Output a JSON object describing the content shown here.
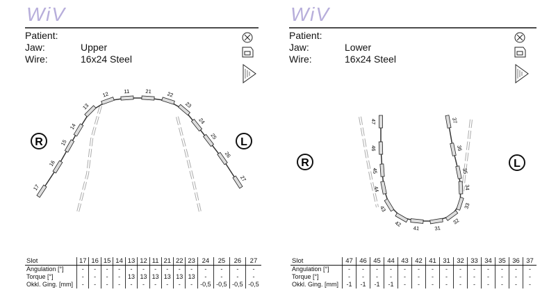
{
  "panels": [
    {
      "logo": "WiV",
      "patient": "Patient:",
      "jaw_label": "Jaw:",
      "jaw": "Upper",
      "wire_label": "Wire:",
      "wire": "16x24 Steel",
      "right_side": "R",
      "left_side": "L",
      "table": {
        "rows": [
          {
            "label": "Slot",
            "cells": [
              "17",
              "16",
              "15",
              "14",
              "13",
              "12",
              "11",
              "21",
              "22",
              "23",
              "24",
              "25",
              "26",
              "27"
            ]
          },
          {
            "label": "Angulation [°]",
            "cells": [
              "-",
              "-",
              "-",
              "-",
              "-",
              "-",
              "-",
              "-",
              "-",
              "-",
              "-",
              "-",
              "-",
              "-"
            ]
          },
          {
            "label": "Torque [°]",
            "cells": [
              "-",
              "-",
              "-",
              "-",
              "13",
              "13",
              "13",
              "13",
              "13",
              "13",
              "-",
              "-",
              "-",
              "-"
            ]
          },
          {
            "label": "Okkl. Ging. [mm]",
            "cells": [
              "-",
              "-",
              "-",
              "-",
              "-",
              "-",
              "-",
              "-",
              "-",
              "-",
              "-0,5",
              "-0,5",
              "-0,5",
              "-0,5"
            ]
          }
        ]
      }
    },
    {
      "logo": "WiV",
      "patient": "Patient:",
      "jaw_label": "Jaw:",
      "jaw": "Lower",
      "wire_label": "Wire:",
      "wire": "16x24 Steel",
      "right_side": "R",
      "left_side": "L",
      "table": {
        "rows": [
          {
            "label": "Slot",
            "cells": [
              "47",
              "46",
              "45",
              "44",
              "43",
              "42",
              "41",
              "31",
              "32",
              "33",
              "34",
              "35",
              "36",
              "37"
            ]
          },
          {
            "label": "Angulation [°]",
            "cells": [
              "-",
              "-",
              "-",
              "-",
              "-",
              "-",
              "-",
              "-",
              "-",
              "-",
              "-",
              "-",
              "-",
              "-"
            ]
          },
          {
            "label": "Torque [°]",
            "cells": [
              "-",
              "-",
              "-",
              "-",
              "-",
              "-",
              "-",
              "-",
              "-",
              "-",
              "-",
              "-",
              "-",
              "-"
            ]
          },
          {
            "label": "Okkl. Ging. [mm]",
            "cells": [
              "-1",
              "-1",
              "-1",
              "-1",
              "-",
              "-",
              "-",
              "-",
              "-",
              "-",
              "-",
              "-",
              "-",
              "-"
            ]
          }
        ]
      }
    }
  ]
}
